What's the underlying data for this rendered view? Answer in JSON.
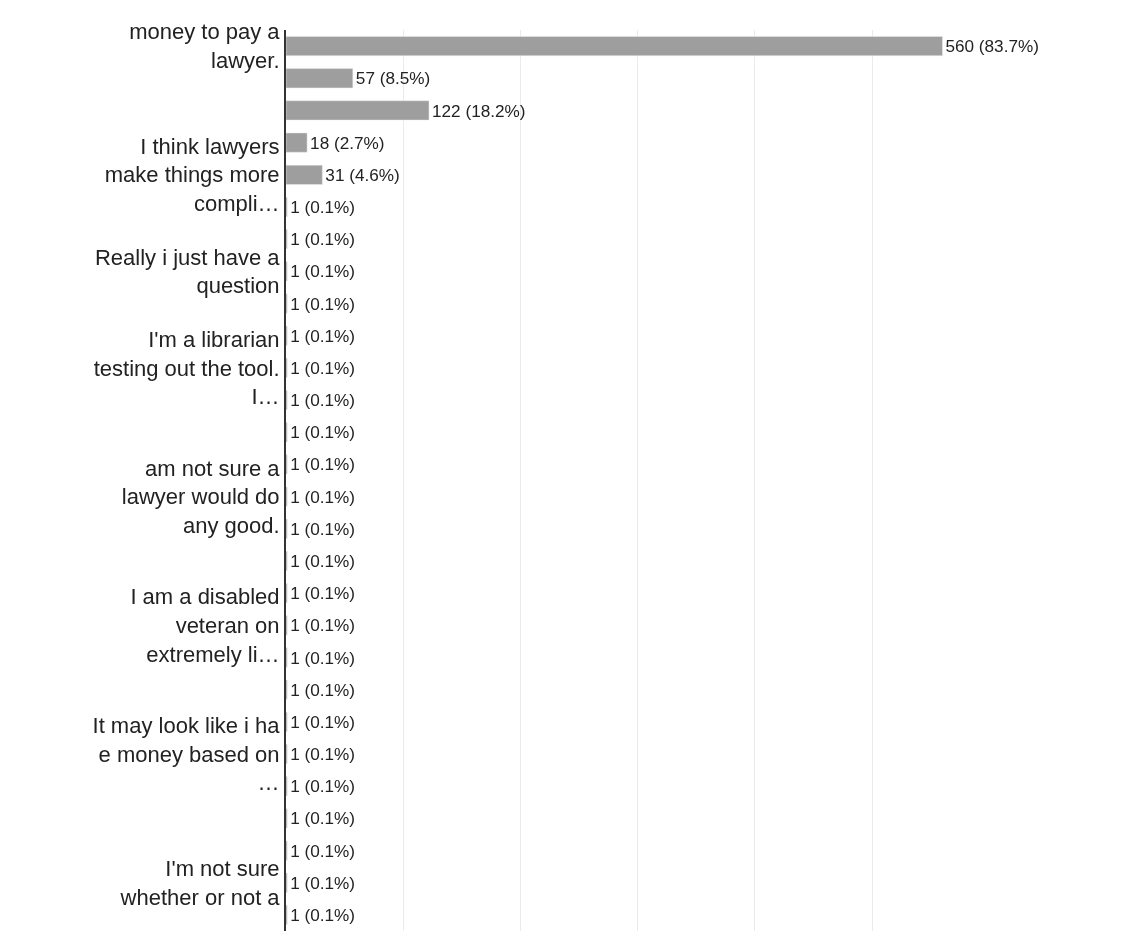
{
  "chart_data": {
    "type": "bar",
    "orientation": "horizontal",
    "categories": [
      "money to pay a\nlawyer.",
      null,
      null,
      null,
      "I think lawyers\nmake things more\ncompli…",
      null,
      null,
      "Really i just have a\nquestion",
      null,
      null,
      "I'm a librarian\ntesting out the tool.\nI…",
      null,
      null,
      null,
      "am not sure a\nlawyer would do\nany good.",
      null,
      null,
      null,
      "I am a disabled\nveteran on\nextremely li…",
      null,
      null,
      null,
      "It may look like i ha\ne money based on\n…",
      null,
      null,
      null,
      "I'm not sure\nwhether or not a",
      null
    ],
    "values": [
      560,
      57,
      122,
      18,
      31,
      1,
      1,
      1,
      1,
      1,
      1,
      1,
      1,
      1,
      1,
      1,
      1,
      1,
      1,
      1,
      1,
      1,
      1,
      1,
      1,
      1,
      1,
      1
    ],
    "value_labels": [
      "560 (83.7%)",
      "57 (8.5%)",
      "122 (18.2%)",
      "18 (2.7%)",
      "31 (4.6%)",
      "1 (0.1%)",
      "1 (0.1%)",
      "1 (0.1%)",
      "1 (0.1%)",
      "1 (0.1%)",
      "1 (0.1%)",
      "1 (0.1%)",
      "1 (0.1%)",
      "1 (0.1%)",
      "1 (0.1%)",
      "1 (0.1%)",
      "1 (0.1%)",
      "1 (0.1%)",
      "1 (0.1%)",
      "1 (0.1%)",
      "1 (0.1%)",
      "1 (0.1%)",
      "1 (0.1%)",
      "1 (0.1%)",
      "1 (0.1%)",
      "1 (0.1%)",
      "1 (0.1%)",
      "1 (0.1%)"
    ],
    "color": "#9e9e9e",
    "xticks": [
      {
        "value": 0,
        "label": null
      },
      {
        "value": 100,
        "label": null
      },
      {
        "value": 200,
        "label": null
      },
      {
        "value": 300,
        "label": null
      },
      {
        "value": 400,
        "label": null
      },
      {
        "value": 500,
        "label": null
      }
    ],
    "grid": "x",
    "tick_labels": "y"
  }
}
